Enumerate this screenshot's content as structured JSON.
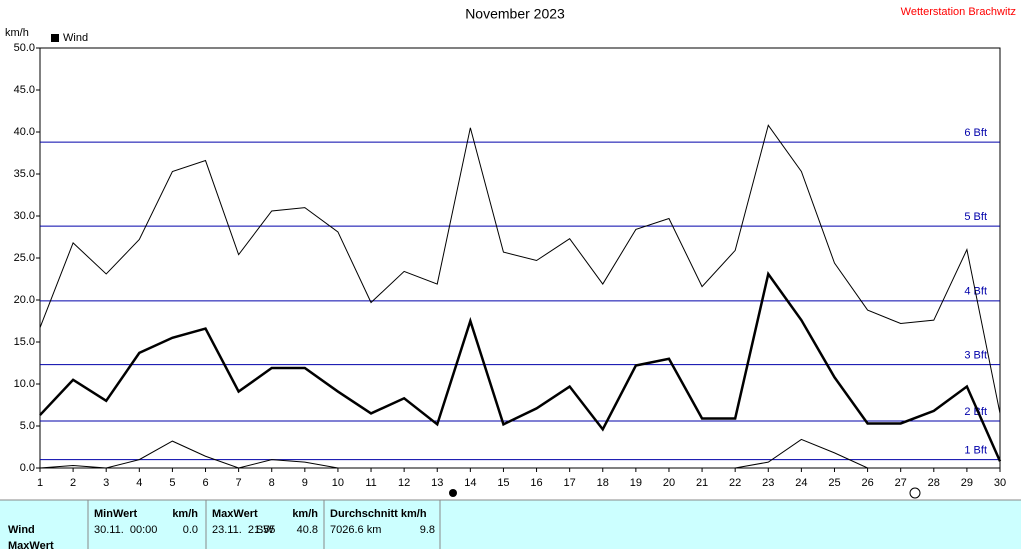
{
  "chart_data": {
    "type": "line",
    "title": "November 2023",
    "station": "Wetterstation Brachwitz",
    "y_unit": "km/h",
    "legend": "Wind",
    "x": [
      1,
      2,
      3,
      4,
      5,
      6,
      7,
      8,
      9,
      10,
      11,
      12,
      13,
      14,
      15,
      16,
      17,
      18,
      19,
      20,
      21,
      22,
      23,
      24,
      25,
      26,
      27,
      28,
      29,
      30
    ],
    "xlim": [
      1,
      30
    ],
    "xticks": [
      1,
      2,
      3,
      4,
      5,
      6,
      7,
      8,
      9,
      10,
      11,
      12,
      13,
      14,
      15,
      16,
      17,
      18,
      19,
      20,
      21,
      22,
      23,
      24,
      25,
      26,
      27,
      28,
      29,
      30
    ],
    "ylim": [
      0,
      50
    ],
    "yticks": [
      {
        "value": 0,
        "label": "0.0"
      },
      {
        "value": 5,
        "label": "5.0"
      },
      {
        "value": 10,
        "label": "10.0"
      },
      {
        "value": 15,
        "label": "15.0"
      },
      {
        "value": 20,
        "label": "20.0"
      },
      {
        "value": 25,
        "label": "25.0"
      },
      {
        "value": 30,
        "label": "30.0"
      },
      {
        "value": 35,
        "label": "35.0"
      },
      {
        "value": 40,
        "label": "40.0"
      },
      {
        "value": 45,
        "label": "45.0"
      },
      {
        "value": 50,
        "label": "50.0"
      }
    ],
    "bft_lines": [
      {
        "value": 1,
        "label": "1 Bft"
      },
      {
        "value": 5.6,
        "label": "2 Bft"
      },
      {
        "value": 12.3,
        "label": "3 Bft"
      },
      {
        "value": 19.9,
        "label": "4 Bft"
      },
      {
        "value": 28.8,
        "label": "5 Bft"
      },
      {
        "value": 38.8,
        "label": "6 Bft"
      }
    ],
    "bft_color": "#0000aa",
    "series": [
      {
        "color": "#000000",
        "width": 1,
        "values": [
          16.7,
          26.8,
          23.1,
          27.2,
          35.3,
          36.6,
          25.4,
          30.6,
          31.0,
          28.1,
          19.7,
          23.4,
          21.9,
          40.5,
          25.7,
          24.7,
          27.3,
          21.9,
          28.4,
          29.7,
          21.6,
          25.9,
          40.8,
          35.3,
          24.4,
          18.8,
          17.2,
          17.6,
          26.0,
          6.5
        ]
      },
      {
        "color": "#000000",
        "width": 2.5,
        "values": [
          6.3,
          10.5,
          8.0,
          13.7,
          15.5,
          16.6,
          9.1,
          11.9,
          11.9,
          9.1,
          6.5,
          8.3,
          5.2,
          17.5,
          5.2,
          7.1,
          9.7,
          4.6,
          12.2,
          13.0,
          5.9,
          5.9,
          23.1,
          17.6,
          10.8,
          5.3,
          5.3,
          6.8,
          9.7,
          0.8
        ]
      },
      {
        "color": "#000000",
        "width": 1,
        "values": [
          0.0,
          0.3,
          0.0,
          1.0,
          3.2,
          1.4,
          0.0,
          1.0,
          0.7,
          0.0,
          0.0,
          0.0,
          0.0,
          0.0,
          0.0,
          0.0,
          0.0,
          0.0,
          0.0,
          0.0,
          0.0,
          0.0,
          0.7,
          3.4,
          1.8,
          0.0,
          0.0,
          0.0,
          0.0,
          0.0
        ]
      }
    ]
  },
  "table": {
    "headers": [
      "MinWert",
      "km/h",
      "MaxWert",
      "km/h",
      "Durchschnitt km/h"
    ],
    "rows": [
      [
        "Wind",
        "30.11.  00:00",
        "0.0",
        "23.11.  21:55",
        "SW",
        "40.8",
        "7026.6 km",
        "9.8"
      ],
      [
        "MaxWert"
      ]
    ]
  }
}
